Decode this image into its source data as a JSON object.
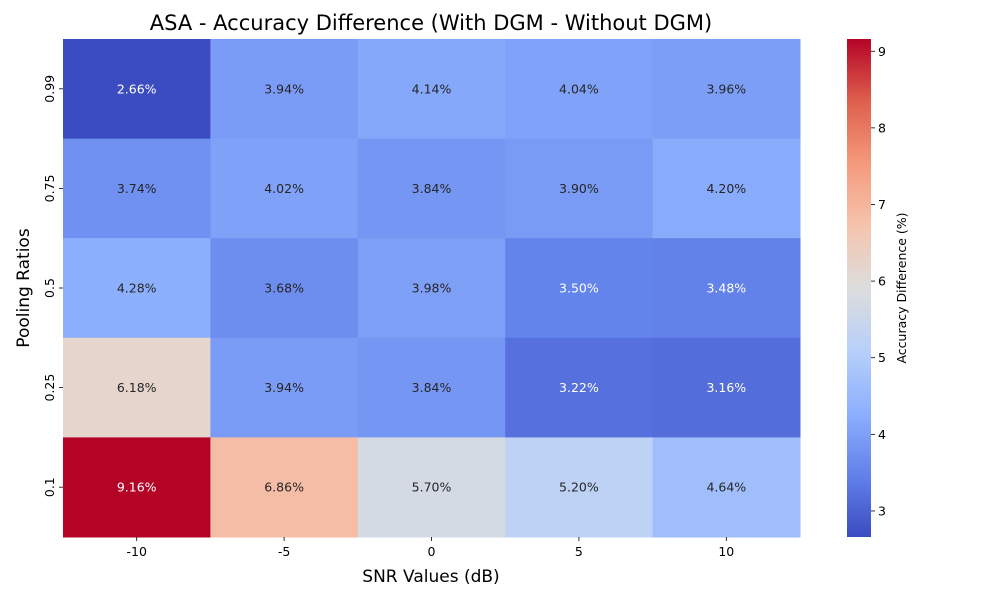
{
  "chart_data": {
    "type": "heatmap",
    "title": "ASA - Accuracy Difference (With DGM - Without DGM)",
    "xlabel": "SNR Values (dB)",
    "ylabel": "Pooling Ratios",
    "x_categories": [
      "-10",
      "-5",
      "0",
      "5",
      "10"
    ],
    "y_categories": [
      "0.99",
      "0.75",
      "0.5",
      "0.25",
      "0.1"
    ],
    "values": [
      [
        2.66,
        3.94,
        4.14,
        4.04,
        3.96
      ],
      [
        3.74,
        4.02,
        3.84,
        3.9,
        4.2
      ],
      [
        4.28,
        3.68,
        3.98,
        3.5,
        3.48
      ],
      [
        6.18,
        3.94,
        3.84,
        3.22,
        3.16
      ],
      [
        9.16,
        6.86,
        5.7,
        5.2,
        4.64
      ]
    ],
    "cell_labels": [
      [
        "2.66%",
        "3.94%",
        "4.14%",
        "4.04%",
        "3.96%"
      ],
      [
        "3.74%",
        "4.02%",
        "3.84%",
        "3.90%",
        "4.20%"
      ],
      [
        "4.28%",
        "3.68%",
        "3.98%",
        "3.50%",
        "3.48%"
      ],
      [
        "6.18%",
        "3.94%",
        "3.84%",
        "3.22%",
        "3.16%"
      ],
      [
        "9.16%",
        "6.86%",
        "5.70%",
        "5.20%",
        "4.64%"
      ]
    ],
    "colormap": "coolwarm",
    "colorbar": {
      "label": "Accuracy Difference (%)",
      "range": [
        2.66,
        9.16
      ],
      "ticks": [
        "3",
        "4",
        "5",
        "6",
        "7",
        "8",
        "9"
      ]
    }
  }
}
